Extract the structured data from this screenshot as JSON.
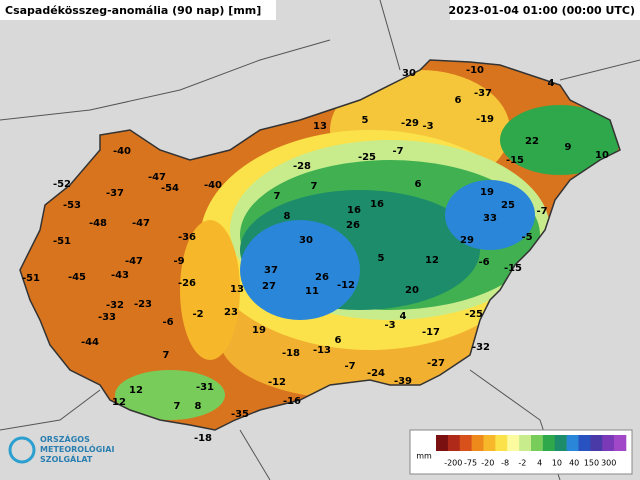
{
  "header": {
    "title": "Csapadékösszeg-anomália (90 nap) [mm]",
    "timestamp": "2023-01-04 01:00 (00:00 UTC)"
  },
  "map": {
    "stations": [
      30,
      -10,
      4,
      6,
      -37,
      -19,
      -29,
      -3,
      13,
      5,
      22,
      9,
      10,
      -25,
      -7,
      -15,
      -40,
      -28,
      -52,
      -47,
      -54,
      -40,
      7,
      6,
      19,
      -37,
      -53,
      7,
      16,
      25,
      -7,
      -48,
      -47,
      8,
      16,
      26,
      33,
      -51,
      -36,
      30,
      29,
      -5,
      -47,
      -9,
      5,
      12,
      -6,
      -15,
      -51,
      -45,
      -43,
      -26,
      37,
      26,
      -12,
      27,
      13,
      11,
      20,
      -32,
      -23,
      -33,
      23,
      -6,
      -2,
      4,
      -25,
      -3,
      19,
      -17,
      -44,
      6,
      -32,
      -13,
      -18,
      7,
      -7,
      -27,
      -24,
      -39,
      -12,
      -31,
      12,
      7,
      8,
      -16,
      12,
      -35,
      -18
    ]
  },
  "legend": {
    "unit": "mm",
    "ticks": [
      -200,
      -75,
      -20,
      -8,
      -2,
      4,
      10,
      40,
      150,
      300
    ],
    "colors": [
      "#7a1010",
      "#b02a1a",
      "#d8501a",
      "#ee8a1c",
      "#f6b82a",
      "#fbe24a",
      "#fdfba0",
      "#c8ec8c",
      "#78cc5a",
      "#2ea84a",
      "#1c8c6a",
      "#2a86d8",
      "#2852c0",
      "#4a3aa8",
      "#7a3ab8",
      "#a048c8"
    ]
  },
  "logo": {
    "line1": "ORSZÁGOS",
    "line2": "METEOROLÓGIAI",
    "line3": "SZOLGÁLAT"
  }
}
